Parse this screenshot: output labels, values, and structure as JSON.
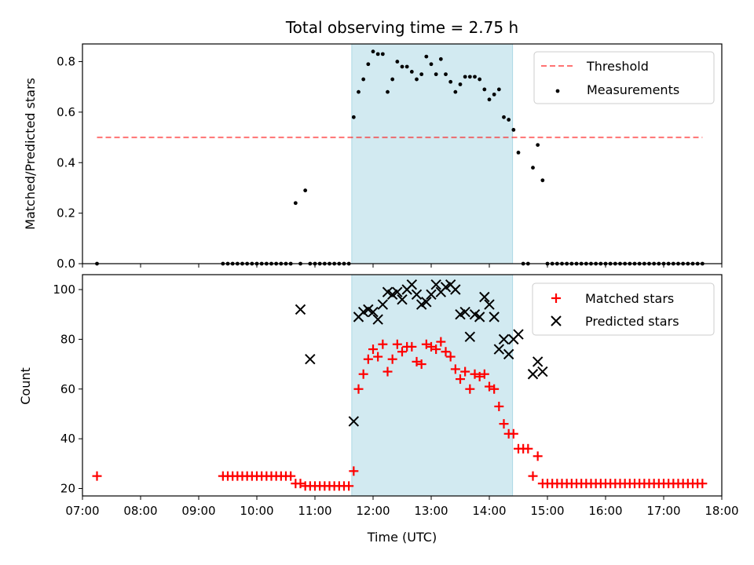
{
  "chart_data": [
    {
      "type": "scatter",
      "title": "Total observing time = 2.75 h",
      "ylabel": "Matched/Predicted stars",
      "xlabel": "",
      "xlim": [
        "07:00",
        "18:00"
      ],
      "ylim": [
        0,
        0.87
      ],
      "yticks": [
        "0.0",
        "0.2",
        "0.4",
        "0.6",
        "0.8"
      ],
      "xticks": [
        "07:00",
        "08:00",
        "09:00",
        "10:00",
        "11:00",
        "12:00",
        "13:00",
        "14:00",
        "15:00",
        "16:00",
        "17:00",
        "18:00"
      ],
      "grid": false,
      "legend": "top-right",
      "observing_window": {
        "start": "11:38",
        "end": "14:24",
        "color": "#add8e6"
      },
      "threshold": {
        "name": "Threshold",
        "value": 0.5,
        "x_start": "07:15",
        "x_end": "17:40",
        "color": "#ff0000"
      },
      "series": [
        {
          "name": "Measurements",
          "color": "#000000",
          "x": [
            "07:15",
            "09:25",
            "09:30",
            "09:35",
            "09:40",
            "09:45",
            "09:50",
            "09:55",
            "10:00",
            "10:05",
            "10:10",
            "10:15",
            "10:20",
            "10:25",
            "10:30",
            "10:35",
            "10:40",
            "10:45",
            "10:50",
            "10:55",
            "11:00",
            "11:05",
            "11:10",
            "11:15",
            "11:20",
            "11:25",
            "11:30",
            "11:35",
            "11:40",
            "11:45",
            "11:50",
            "11:55",
            "12:00",
            "12:05",
            "12:10",
            "12:15",
            "12:20",
            "12:25",
            "12:30",
            "12:35",
            "12:40",
            "12:45",
            "12:50",
            "12:55",
            "13:00",
            "13:05",
            "13:10",
            "13:15",
            "13:20",
            "13:25",
            "13:30",
            "13:35",
            "13:40",
            "13:45",
            "13:50",
            "13:55",
            "14:00",
            "14:05",
            "14:10",
            "14:15",
            "14:20",
            "14:25",
            "14:30",
            "14:35",
            "14:40",
            "14:45",
            "14:50",
            "14:55",
            "15:00",
            "15:05",
            "15:10",
            "15:15",
            "15:20",
            "15:25",
            "15:30",
            "15:35",
            "15:40",
            "15:45",
            "15:50",
            "15:55",
            "16:00",
            "16:05",
            "16:10",
            "16:15",
            "16:20",
            "16:25",
            "16:30",
            "16:35",
            "16:40",
            "16:45",
            "16:50",
            "16:55",
            "17:00",
            "17:05",
            "17:10",
            "17:15",
            "17:20",
            "17:25",
            "17:30",
            "17:35",
            "17:40"
          ],
          "y": [
            0,
            0,
            0,
            0,
            0,
            0,
            0,
            0,
            0,
            0,
            0,
            0,
            0,
            0,
            0,
            0,
            0.24,
            0,
            0.29,
            0,
            0,
            0,
            0,
            0,
            0,
            0,
            0,
            0,
            0.58,
            0.68,
            0.73,
            0.79,
            0.84,
            0.83,
            0.83,
            0.68,
            0.73,
            0.8,
            0.78,
            0.78,
            0.76,
            0.73,
            0.75,
            0.82,
            0.79,
            0.75,
            0.81,
            0.75,
            0.72,
            0.68,
            0.71,
            0.74,
            0.74,
            0.74,
            0.73,
            0.69,
            0.65,
            0.67,
            0.69,
            0.58,
            0.57,
            0.53,
            0.44,
            0,
            0,
            0.38,
            0.47,
            0.33,
            0,
            0,
            0,
            0,
            0,
            0,
            0,
            0,
            0,
            0,
            0,
            0,
            0,
            0,
            0,
            0,
            0,
            0,
            0,
            0,
            0,
            0,
            0,
            0,
            0,
            0,
            0,
            0,
            0,
            0,
            0,
            0,
            0
          ]
        }
      ]
    },
    {
      "type": "scatter",
      "title": "",
      "ylabel": "Count",
      "xlabel": "Time (UTC)",
      "xlim": [
        "07:00",
        "18:00"
      ],
      "ylim": [
        17,
        106
      ],
      "yticks": [
        "20",
        "40",
        "60",
        "80",
        "100"
      ],
      "xticks": [
        "07:00",
        "08:00",
        "09:00",
        "10:00",
        "11:00",
        "12:00",
        "13:00",
        "14:00",
        "15:00",
        "16:00",
        "17:00",
        "18:00"
      ],
      "grid": false,
      "legend": "top-right",
      "observing_window": {
        "start": "11:38",
        "end": "14:24",
        "color": "#add8e6"
      },
      "series": [
        {
          "name": "Matched stars",
          "marker": "plus",
          "color": "#ff0000",
          "x": [
            "07:15",
            "09:25",
            "09:30",
            "09:35",
            "09:40",
            "09:45",
            "09:50",
            "09:55",
            "10:00",
            "10:05",
            "10:10",
            "10:15",
            "10:20",
            "10:25",
            "10:30",
            "10:35",
            "10:40",
            "10:45",
            "10:50",
            "10:55",
            "11:00",
            "11:05",
            "11:10",
            "11:15",
            "11:20",
            "11:25",
            "11:30",
            "11:35",
            "11:40",
            "11:45",
            "11:50",
            "11:55",
            "12:00",
            "12:05",
            "12:10",
            "12:15",
            "12:20",
            "12:25",
            "12:30",
            "12:35",
            "12:40",
            "12:45",
            "12:50",
            "12:55",
            "13:00",
            "13:05",
            "13:10",
            "13:15",
            "13:20",
            "13:25",
            "13:30",
            "13:35",
            "13:40",
            "13:45",
            "13:50",
            "13:55",
            "14:00",
            "14:05",
            "14:10",
            "14:15",
            "14:20",
            "14:25",
            "14:30",
            "14:35",
            "14:40",
            "14:45",
            "14:50",
            "14:55",
            "15:00",
            "15:05",
            "15:10",
            "15:15",
            "15:20",
            "15:25",
            "15:30",
            "15:35",
            "15:40",
            "15:45",
            "15:50",
            "15:55",
            "16:00",
            "16:05",
            "16:10",
            "16:15",
            "16:20",
            "16:25",
            "16:30",
            "16:35",
            "16:40",
            "16:45",
            "16:50",
            "16:55",
            "17:00",
            "17:05",
            "17:10",
            "17:15",
            "17:20",
            "17:25",
            "17:30",
            "17:35",
            "17:40"
          ],
          "y": [
            25,
            25,
            25,
            25,
            25,
            25,
            25,
            25,
            25,
            25,
            25,
            25,
            25,
            25,
            25,
            25,
            22,
            22,
            21,
            21,
            21,
            21,
            21,
            21,
            21,
            21,
            21,
            21,
            27,
            60,
            66,
            72,
            76,
            73,
            78,
            67,
            72,
            78,
            75,
            77,
            77,
            71,
            70,
            78,
            77,
            76,
            79,
            75,
            73,
            68,
            64,
            67,
            60,
            66,
            65,
            66,
            61,
            60,
            53,
            46,
            42,
            42,
            36,
            36,
            36,
            25,
            33,
            22,
            22,
            22,
            22,
            22,
            22,
            22,
            22,
            22,
            22,
            22,
            22,
            22,
            22,
            22,
            22,
            22,
            22,
            22,
            22,
            22,
            22,
            22,
            22,
            22,
            22,
            22,
            22,
            22,
            22,
            22,
            22,
            22,
            22
          ]
        },
        {
          "name": "Predicted stars",
          "marker": "x",
          "color": "#000000",
          "x": [
            "10:45",
            "10:55",
            "11:40",
            "11:45",
            "11:50",
            "11:55",
            "12:00",
            "12:05",
            "12:10",
            "12:15",
            "12:20",
            "12:25",
            "12:30",
            "12:35",
            "12:40",
            "12:45",
            "12:50",
            "12:55",
            "13:00",
            "13:05",
            "13:10",
            "13:15",
            "13:20",
            "13:25",
            "13:30",
            "13:35",
            "13:40",
            "13:45",
            "13:50",
            "13:55",
            "14:00",
            "14:05",
            "14:10",
            "14:15",
            "14:20",
            "14:25",
            "14:30",
            "14:45",
            "14:50",
            "14:55"
          ],
          "y": [
            92,
            72,
            47,
            89,
            91,
            92,
            91,
            88,
            94,
            99,
            98,
            99,
            96,
            100,
            102,
            98,
            94,
            95,
            98,
            102,
            99,
            101,
            102,
            100,
            90,
            91,
            81,
            90,
            89,
            97,
            94,
            89,
            76,
            80,
            74,
            80,
            82,
            66,
            71,
            67
          ]
        }
      ]
    }
  ]
}
